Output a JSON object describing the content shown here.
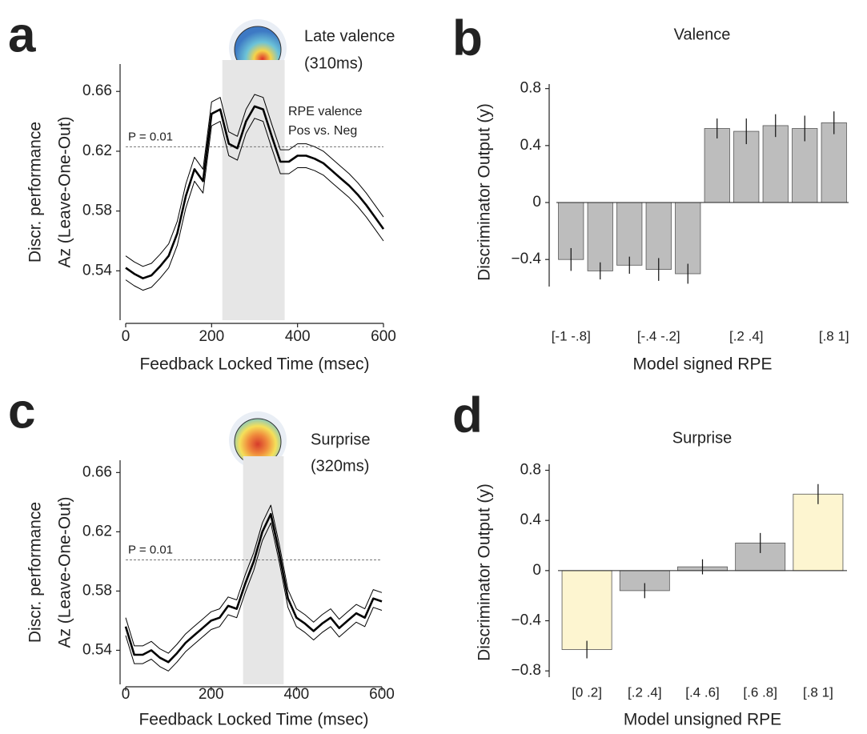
{
  "chart_data": [
    {
      "type": "line",
      "panel_label": "a",
      "ylabel": [
        "Discr. performance",
        "Az (Leave-One-Out)"
      ],
      "xlabel": "Feedback Locked Time (msec)",
      "annotations": [
        "Late valence",
        "(310ms)",
        "RPE valence",
        "Pos vs. Neg"
      ],
      "threshold": {
        "value": 0.623,
        "label": "P = 0.01"
      },
      "span": [
        225,
        370
      ],
      "x": [
        0,
        20,
        40,
        60,
        80,
        100,
        120,
        140,
        160,
        180,
        200,
        220,
        240,
        260,
        280,
        300,
        320,
        340,
        360,
        380,
        400,
        420,
        440,
        460,
        480,
        500,
        520,
        540,
        560,
        580,
        600
      ],
      "series": [
        {
          "color": "#000000",
          "values": [
            0.534,
            0.53,
            0.527,
            0.529,
            0.535,
            0.542,
            0.557,
            0.582,
            0.6,
            0.592,
            0.637,
            0.64,
            0.617,
            0.614,
            0.632,
            0.642,
            0.64,
            0.622,
            0.605,
            0.605,
            0.609,
            0.609,
            0.607,
            0.604,
            0.599,
            0.594,
            0.589,
            0.583,
            0.576,
            0.568,
            0.56
          ]
        },
        {
          "color": "#000000",
          "values": [
            0.542,
            0.538,
            0.535,
            0.537,
            0.543,
            0.55,
            0.565,
            0.59,
            0.608,
            0.6,
            0.645,
            0.648,
            0.625,
            0.622,
            0.64,
            0.65,
            0.648,
            0.63,
            0.613,
            0.613,
            0.617,
            0.617,
            0.615,
            0.612,
            0.607,
            0.602,
            0.597,
            0.591,
            0.584,
            0.576,
            0.568
          ]
        },
        {
          "color": "#000000",
          "values": [
            0.55,
            0.546,
            0.543,
            0.545,
            0.551,
            0.558,
            0.573,
            0.598,
            0.616,
            0.608,
            0.653,
            0.656,
            0.633,
            0.63,
            0.648,
            0.658,
            0.656,
            0.638,
            0.621,
            0.621,
            0.625,
            0.625,
            0.623,
            0.62,
            0.615,
            0.61,
            0.605,
            0.599,
            0.592,
            0.584,
            0.576
          ]
        }
      ],
      "xlim": [
        0,
        600
      ],
      "ylim": [
        0.507,
        0.681
      ],
      "xticks": [
        0,
        200,
        400,
        600
      ],
      "yticks": [
        0.54,
        0.58,
        0.62,
        0.66
      ]
    },
    {
      "type": "bar",
      "panel_label": "b",
      "title": "Valence",
      "ylabel": "Discriminator Output (y)",
      "xlabel": "Model signed RPE",
      "categories": [
        "[-1 -.8]",
        null,
        null,
        "[-.4 -.2]",
        null,
        null,
        "[.2 .4]",
        null,
        null,
        "[.8 1]"
      ],
      "values": [
        -0.4,
        -0.48,
        -0.44,
        -0.47,
        -0.5,
        0.52,
        0.5,
        0.54,
        0.52,
        0.56
      ],
      "errors": [
        0.08,
        0.06,
        0.06,
        0.08,
        0.07,
        0.07,
        0.09,
        0.08,
        0.09,
        0.08
      ],
      "colors": [
        "#bdbdbd",
        "#bdbdbd",
        "#bdbdbd",
        "#bdbdbd",
        "#bdbdbd",
        "#bdbdbd",
        "#bdbdbd",
        "#bdbdbd",
        "#bdbdbd",
        "#bdbdbd"
      ],
      "ylim": [
        -0.59,
        0.86
      ],
      "yticks": [
        {
          "value": -0.4,
          "label": "−0.4"
        },
        0,
        0.4,
        0.8
      ]
    },
    {
      "type": "line",
      "panel_label": "c",
      "ylabel": [
        "Discr. performance",
        "Az (Leave-One-Out)"
      ],
      "xlabel": "Feedback Locked Time (msec)",
      "annotations": [
        "Surprise",
        "(320ms)"
      ],
      "threshold": {
        "value": 0.601,
        "label": "P = 0.01"
      },
      "span": [
        275,
        370
      ],
      "x": [
        0,
        20,
        40,
        60,
        80,
        100,
        120,
        140,
        160,
        180,
        200,
        220,
        240,
        260,
        280,
        300,
        320,
        340,
        360,
        380,
        400,
        420,
        440,
        460,
        480,
        500,
        520,
        540,
        560,
        580,
        600
      ],
      "series": [
        {
          "color": "#000000",
          "values": [
            0.55,
            0.531,
            0.531,
            0.534,
            0.529,
            0.526,
            0.532,
            0.539,
            0.544,
            0.549,
            0.554,
            0.556,
            0.564,
            0.562,
            0.579,
            0.594,
            0.614,
            0.626,
            0.599,
            0.569,
            0.556,
            0.552,
            0.547,
            0.552,
            0.556,
            0.549,
            0.554,
            0.559,
            0.556,
            0.569,
            0.567
          ]
        },
        {
          "color": "#000000",
          "values": [
            0.556,
            0.537,
            0.537,
            0.54,
            0.535,
            0.532,
            0.538,
            0.545,
            0.55,
            0.555,
            0.56,
            0.562,
            0.57,
            0.568,
            0.585,
            0.6,
            0.62,
            0.632,
            0.605,
            0.575,
            0.562,
            0.558,
            0.553,
            0.558,
            0.562,
            0.555,
            0.56,
            0.565,
            0.562,
            0.575,
            0.573
          ]
        },
        {
          "color": "#000000",
          "values": [
            0.562,
            0.543,
            0.543,
            0.546,
            0.541,
            0.538,
            0.544,
            0.551,
            0.556,
            0.561,
            0.566,
            0.568,
            0.576,
            0.574,
            0.591,
            0.606,
            0.626,
            0.638,
            0.611,
            0.581,
            0.568,
            0.564,
            0.559,
            0.564,
            0.568,
            0.561,
            0.566,
            0.571,
            0.568,
            0.581,
            0.579
          ]
        }
      ],
      "xlim": [
        0,
        600
      ],
      "ylim": [
        0.517,
        0.671
      ],
      "xticks": [
        0,
        200,
        400,
        600
      ],
      "yticks": [
        0.54,
        0.58,
        0.62,
        0.66
      ]
    },
    {
      "type": "bar",
      "panel_label": "d",
      "title": "Surprise",
      "ylabel": "Discriminator Output (y)",
      "xlabel": "Model unsigned RPE",
      "categories": [
        "[0 .2]",
        "[.2 .4]",
        "[.4 .6]",
        "[.6 .8]",
        "[.8 1]"
      ],
      "values": [
        -0.63,
        -0.16,
        0.03,
        0.22,
        0.61
      ],
      "errors": [
        0.07,
        0.06,
        0.06,
        0.08,
        0.08
      ],
      "colors": [
        "#fdf5d0",
        "#bdbdbd",
        "#bdbdbd",
        "#bdbdbd",
        "#fdf5d0"
      ],
      "ylim": [
        -0.85,
        0.88
      ],
      "yticks": [
        {
          "value": -0.8,
          "label": "−0.8"
        },
        {
          "value": -0.4,
          "label": "−0.4"
        },
        0,
        0.4,
        0.8
      ]
    }
  ]
}
